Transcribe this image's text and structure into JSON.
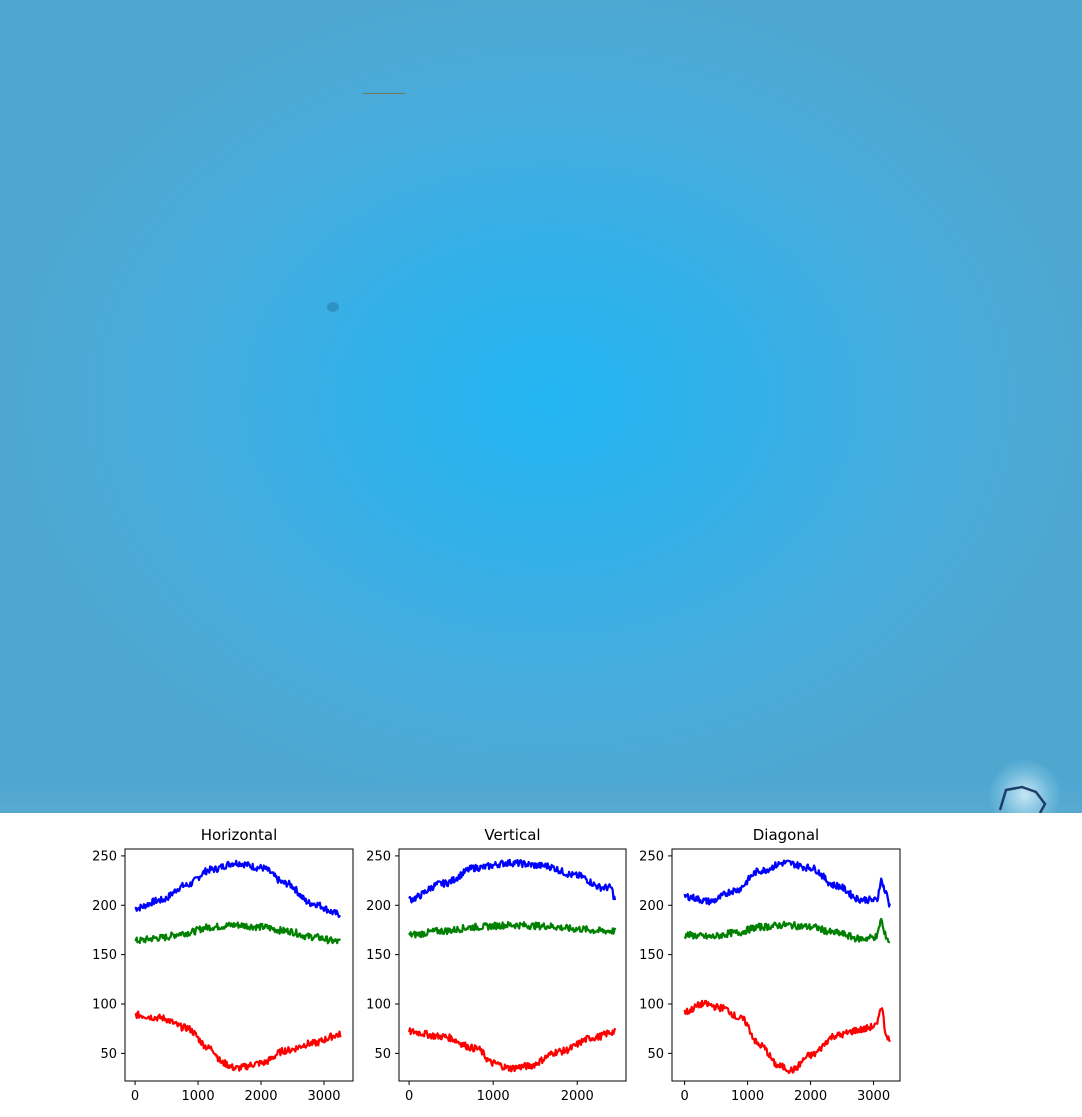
{
  "photo": {
    "description_colors": {
      "center": "#22b5f2",
      "edge": "#4fa6cf"
    }
  },
  "colors": {
    "blue": "#0000ff",
    "green": "#008000",
    "red": "#ff0000",
    "axis": "#000000"
  },
  "chart_data": [
    {
      "type": "line",
      "title": "Horizontal",
      "xlabel": "",
      "ylabel": "",
      "xlim": [
        -160,
        3460
      ],
      "ylim": [
        22,
        257
      ],
      "xticks": [
        0,
        1000,
        2000,
        3000
      ],
      "yticks": [
        50,
        100,
        150,
        200,
        250
      ],
      "series": [
        {
          "name": "blue",
          "x": [
            0,
            400,
            800,
            1200,
            1600,
            2000,
            2400,
            2800,
            3260
          ],
          "values": [
            197,
            205,
            220,
            236,
            243,
            238,
            222,
            202,
            191
          ]
        },
        {
          "name": "green",
          "x": [
            0,
            400,
            800,
            1200,
            1600,
            2000,
            2400,
            2800,
            3260
          ],
          "values": [
            164,
            167,
            172,
            178,
            180,
            178,
            174,
            168,
            163
          ]
        },
        {
          "name": "red",
          "x": [
            0,
            400,
            800,
            1200,
            1400,
            1600,
            2000,
            2400,
            2800,
            3260
          ],
          "values": [
            89,
            86,
            76,
            55,
            40,
            35,
            40,
            53,
            60,
            69
          ]
        }
      ]
    },
    {
      "type": "line",
      "title": "Vertical",
      "xlabel": "",
      "ylabel": "",
      "xlim": [
        -120,
        2580
      ],
      "ylim": [
        22,
        257
      ],
      "xticks": [
        0,
        1000,
        2000
      ],
      "yticks": [
        50,
        100,
        150,
        200,
        250
      ],
      "series": [
        {
          "name": "blue",
          "x": [
            0,
            400,
            800,
            1200,
            1600,
            2000,
            2300,
            2400,
            2450
          ],
          "values": [
            206,
            222,
            238,
            243,
            240,
            230,
            218,
            218,
            206
          ]
        },
        {
          "name": "green",
          "x": [
            0,
            400,
            800,
            1200,
            1600,
            2000,
            2300,
            2450
          ],
          "values": [
            170,
            174,
            178,
            180,
            179,
            176,
            174,
            174
          ]
        },
        {
          "name": "red",
          "x": [
            0,
            400,
            800,
            1000,
            1200,
            1400,
            1800,
            2200,
            2450
          ],
          "values": [
            72,
            67,
            55,
            40,
            35,
            37,
            52,
            66,
            72
          ]
        }
      ]
    },
    {
      "type": "line",
      "title": "Diagonal",
      "xlabel": "",
      "ylabel": "",
      "xlim": [
        -200,
        3420
      ],
      "ylim": [
        22,
        257
      ],
      "xticks": [
        0,
        1000,
        2000,
        3000
      ],
      "yticks": [
        50,
        100,
        150,
        200,
        250
      ],
      "series": [
        {
          "name": "blue",
          "x": [
            0,
            400,
            800,
            1200,
            1600,
            2000,
            2400,
            2800,
            3050,
            3120,
            3200,
            3260
          ],
          "values": [
            209,
            204,
            215,
            235,
            243,
            238,
            220,
            206,
            205,
            225,
            212,
            200
          ]
        },
        {
          "name": "green",
          "x": [
            0,
            400,
            800,
            1200,
            1600,
            2000,
            2400,
            2800,
            3050,
            3120,
            3180,
            3260
          ],
          "values": [
            170,
            168,
            172,
            178,
            180,
            178,
            172,
            166,
            168,
            185,
            170,
            163
          ]
        },
        {
          "name": "red",
          "x": [
            0,
            300,
            600,
            900,
            1200,
            1500,
            1700,
            2000,
            2400,
            2800,
            3050,
            3120,
            3200,
            3260
          ],
          "values": [
            92,
            100,
            96,
            85,
            58,
            37,
            33,
            48,
            68,
            74,
            78,
            98,
            70,
            62
          ]
        }
      ]
    }
  ]
}
